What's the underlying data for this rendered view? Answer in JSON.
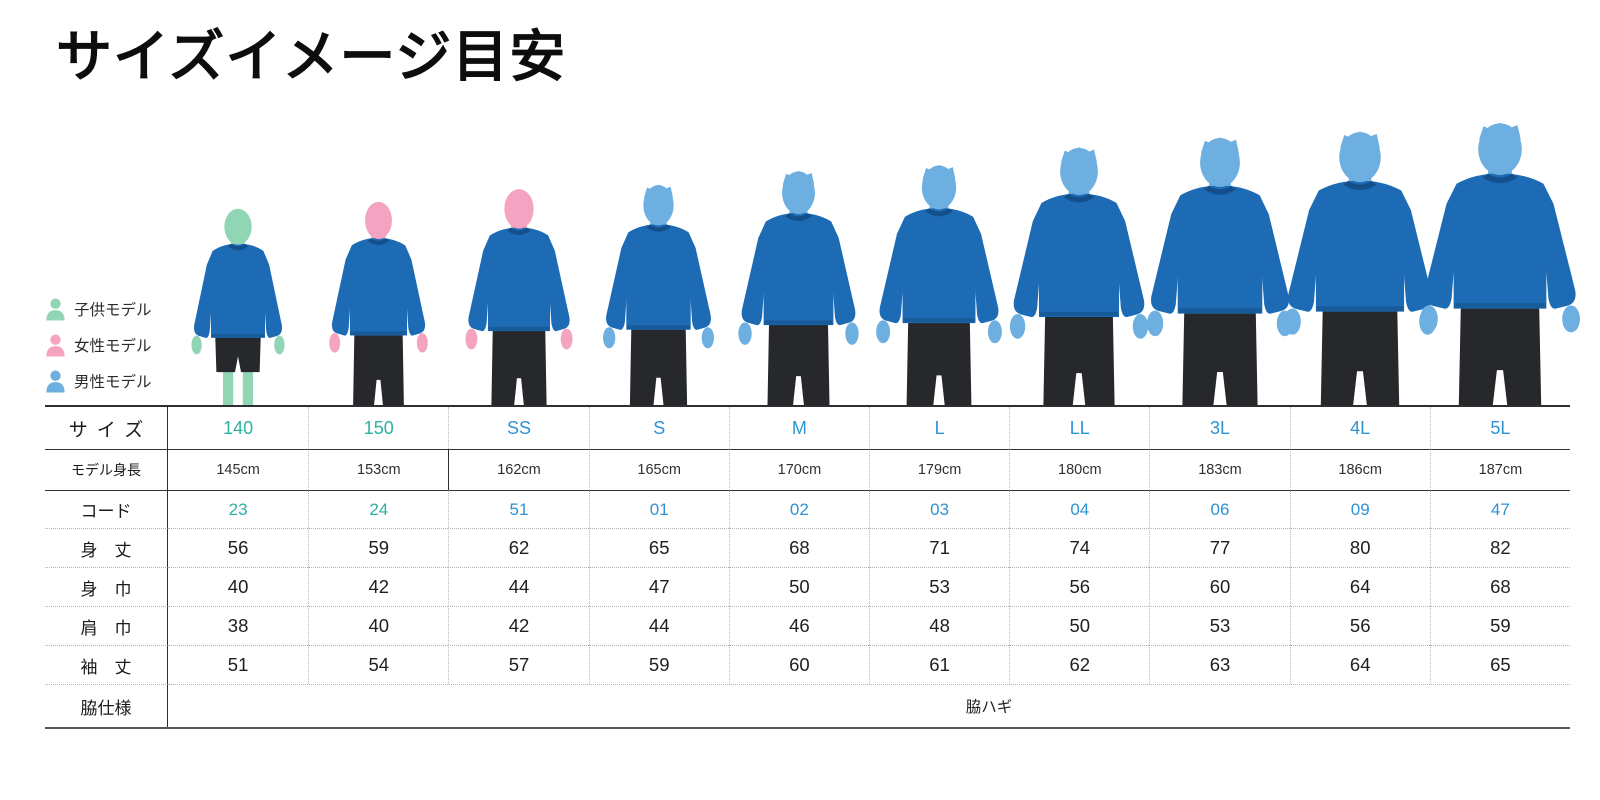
{
  "chart_data": {
    "type": "table",
    "title": "サイズイメージ目安",
    "row_headers": {
      "size": "サイズ",
      "model_height": "モデル身長",
      "code": "コード",
      "body_length": "身　丈",
      "body_width": "身　巾",
      "shoulder_width": "肩　巾",
      "sleeve_length": "袖　丈",
      "side_spec": "脇仕様"
    },
    "columns": [
      {
        "size": "140",
        "accent": "teal",
        "model": "child",
        "model_height": "145cm",
        "height_cm": 145,
        "code": "23",
        "body_length": "56",
        "body_width": "40",
        "shoulder_width": "38",
        "sleeve_length": "51"
      },
      {
        "size": "150",
        "accent": "teal",
        "model": "female",
        "model_height": "153cm",
        "height_cm": 153,
        "code": "24",
        "body_length": "59",
        "body_width": "42",
        "shoulder_width": "40",
        "sleeve_length": "54"
      },
      {
        "size": "SS",
        "accent": "blue",
        "model": "female",
        "model_height": "162cm",
        "height_cm": 162,
        "code": "51",
        "body_length": "62",
        "body_width": "44",
        "shoulder_width": "42",
        "sleeve_length": "57"
      },
      {
        "size": "S",
        "accent": "blue",
        "model": "male",
        "model_height": "165cm",
        "height_cm": 165,
        "code": "01",
        "body_length": "65",
        "body_width": "47",
        "shoulder_width": "44",
        "sleeve_length": "59"
      },
      {
        "size": "M",
        "accent": "blue",
        "model": "male",
        "model_height": "170cm",
        "height_cm": 170,
        "code": "02",
        "body_length": "68",
        "body_width": "50",
        "shoulder_width": "46",
        "sleeve_length": "60"
      },
      {
        "size": "L",
        "accent": "blue",
        "model": "male",
        "model_height": "179cm",
        "height_cm": 179,
        "code": "03",
        "body_length": "71",
        "body_width": "53",
        "shoulder_width": "48",
        "sleeve_length": "61"
      },
      {
        "size": "LL",
        "accent": "blue",
        "model": "male",
        "model_height": "180cm",
        "height_cm": 180,
        "code": "04",
        "body_length": "74",
        "body_width": "56",
        "shoulder_width": "50",
        "sleeve_length": "62"
      },
      {
        "size": "3L",
        "accent": "blue",
        "model": "male",
        "model_height": "183cm",
        "height_cm": 183,
        "code": "06",
        "body_length": "77",
        "body_width": "60",
        "shoulder_width": "53",
        "sleeve_length": "63"
      },
      {
        "size": "4L",
        "accent": "blue",
        "model": "male",
        "model_height": "186cm",
        "height_cm": 186,
        "code": "09",
        "body_length": "80",
        "body_width": "64",
        "shoulder_width": "56",
        "sleeve_length": "64"
      },
      {
        "size": "5L",
        "accent": "blue",
        "model": "male",
        "model_height": "187cm",
        "height_cm": 187,
        "code": "47",
        "body_length": "82",
        "body_width": "68",
        "shoulder_width": "59",
        "sleeve_length": "65"
      }
    ],
    "side_spec_value": "脇ハギ"
  },
  "legend": {
    "items": [
      {
        "id": "child",
        "label": "子供モデル"
      },
      {
        "id": "female",
        "label": "女性モデル"
      },
      {
        "id": "male",
        "label": "男性モデル"
      }
    ]
  },
  "colors": {
    "accent_teal": "#2cb2a0",
    "accent_blue": "#2e93d3",
    "child_skin": "#90d5b4",
    "female_skin": "#f4a3c1",
    "male_skin": "#6cafe0",
    "shirt_blue": "#1d6bb4",
    "collar_blue": "#134f8b",
    "pants_dark": "#26282b"
  }
}
